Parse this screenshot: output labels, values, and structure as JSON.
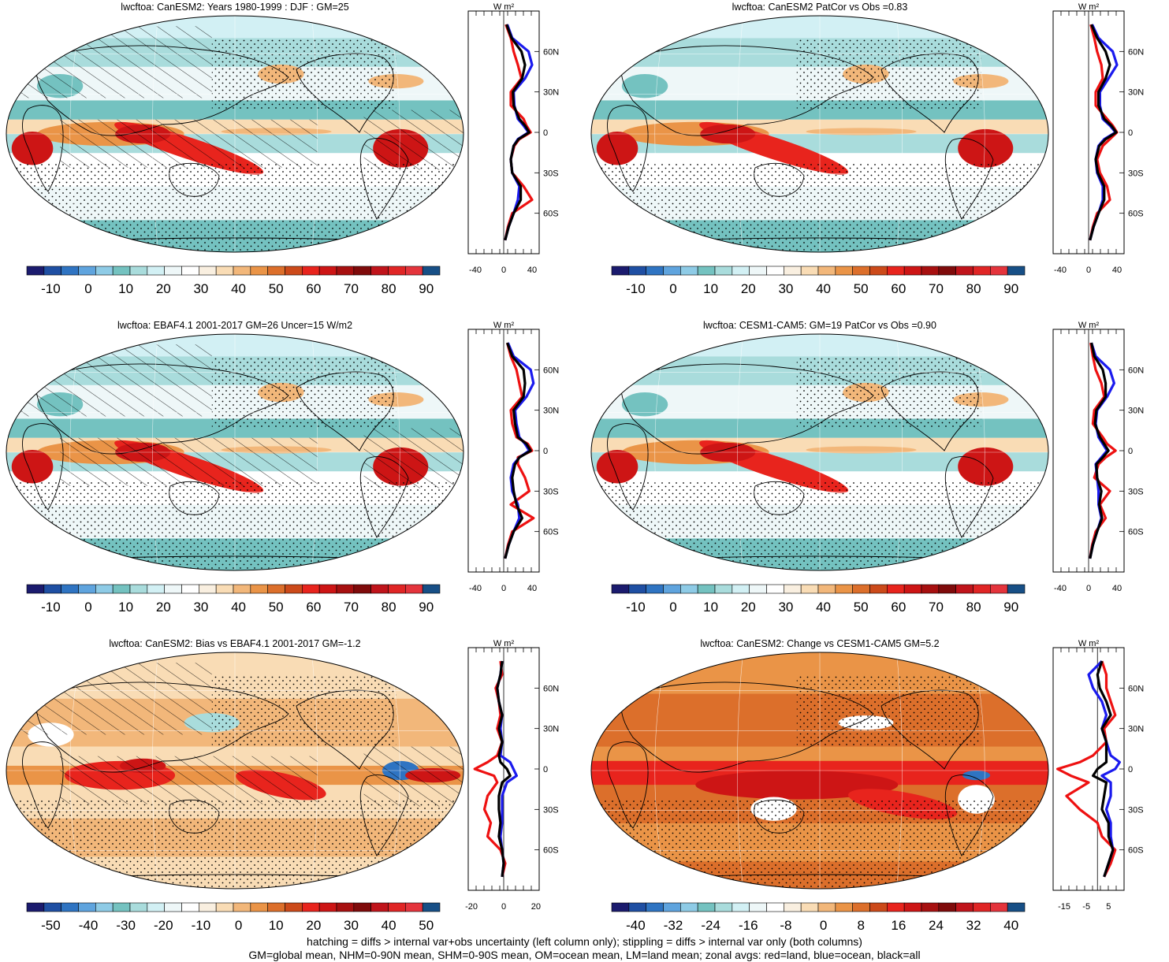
{
  "footer": {
    "line1": "hatching = diffs > internal var+obs uncertainty (left column only); stippling = diffs > internal var only (both columns)",
    "line2": "GM=global mean, NHM=0-90N mean, SHM=0-90S mean, OM=ocean mean, LM=land mean; zonal avgs: red=land, blue=ocean, black=all"
  },
  "zonal_units": "W m²",
  "lat_labels": [
    "60N",
    "30N",
    "0",
    "30S",
    "60S"
  ],
  "colors": {
    "land": "#ee1111",
    "ocean": "#1a1aee",
    "all": "#000000"
  },
  "palettes": {
    "mean": [
      "#1b1b6e",
      "#1f4fa3",
      "#2f74c2",
      "#5fa4de",
      "#8ecbe6",
      "#74c2c0",
      "#a9dcdc",
      "#d2f0f4",
      "#eef7f8",
      "#ffffff",
      "#f9efe0",
      "#f9dcb5",
      "#f2b77a",
      "#ea9447",
      "#dc6f2b",
      "#cc4a1a",
      "#e8241d",
      "#cd1515",
      "#a71010",
      "#7f0b0b",
      "#c0141b",
      "#e02525",
      "#e4343c",
      "#174f86"
    ],
    "diff": [
      "#1b1b6e",
      "#1f4fa3",
      "#2f74c2",
      "#5fa4de",
      "#8ecbe6",
      "#74c2c0",
      "#a9dcdc",
      "#d2f0f4",
      "#eef7f8",
      "#ffffff",
      "#f9efe0",
      "#f9dcb5",
      "#f2b77a",
      "#ea9447",
      "#dc6f2b",
      "#cc4a1a",
      "#e8241d",
      "#cd1515",
      "#a71010",
      "#7f0b0b",
      "#c0141b",
      "#e02525",
      "#e4343c",
      "#174f86"
    ]
  },
  "panels": [
    {
      "id": "p1",
      "title": "lwcftoa: CanESM2: Years 1980-1999 : DJF : GM=25",
      "cb_labels": [
        "-10",
        "0",
        "10",
        "20",
        "30",
        "40",
        "50",
        "60",
        "70",
        "80",
        "90"
      ],
      "cb_palette": "mean",
      "z_ticks": [
        "-40",
        "0",
        "40"
      ],
      "z_range": [
        -50,
        50
      ],
      "map_style": "mean",
      "hatch": true
    },
    {
      "id": "p2",
      "title": "lwcftoa: CanESM2 PatCor vs Obs =0.83",
      "cb_labels": [
        "-10",
        "0",
        "10",
        "20",
        "30",
        "40",
        "50",
        "60",
        "70",
        "80",
        "90"
      ],
      "cb_palette": "mean",
      "z_ticks": [
        "-40",
        "0",
        "40"
      ],
      "z_range": [
        -50,
        50
      ],
      "map_style": "mean",
      "hatch": false
    },
    {
      "id": "p3",
      "title": "lwcftoa: EBAF4.1 2001-2017 GM=26 Uncer=15 W/m2",
      "cb_labels": [
        "-10",
        "0",
        "10",
        "20",
        "30",
        "40",
        "50",
        "60",
        "70",
        "80",
        "90"
      ],
      "cb_palette": "mean",
      "z_ticks": [
        "-40",
        "0",
        "40"
      ],
      "z_range": [
        -50,
        50
      ],
      "map_style": "mean",
      "hatch": true
    },
    {
      "id": "p4",
      "title": "lwcftoa: CESM1-CAM5: GM=19 PatCor vs Obs =0.90",
      "cb_labels": [
        "-10",
        "0",
        "10",
        "20",
        "30",
        "40",
        "50",
        "60",
        "70",
        "80",
        "90"
      ],
      "cb_palette": "mean",
      "z_ticks": [
        "-40",
        "0",
        "40"
      ],
      "z_range": [
        -50,
        50
      ],
      "map_style": "mean",
      "hatch": false
    },
    {
      "id": "p5",
      "title": "lwcftoa: CanESM2: Bias vs EBAF4.1 2001-2017 GM=-1.2",
      "cb_labels": [
        "-50",
        "-40",
        "-30",
        "-20",
        "-10",
        "0",
        "10",
        "20",
        "30",
        "40",
        "50"
      ],
      "cb_palette": "diff",
      "z_ticks": [
        "-20",
        "0",
        "20"
      ],
      "z_range": [
        -22,
        22
      ],
      "map_style": "bias",
      "hatch": true
    },
    {
      "id": "p6",
      "title": "lwcftoa: CanESM2: Change vs CESM1-CAM5 GM=5.2",
      "cb_labels": [
        "-40",
        "-32",
        "-24",
        "-16",
        "-8",
        "0",
        "8",
        "16",
        "24",
        "32",
        "40"
      ],
      "cb_palette": "diff",
      "z_ticks": [
        "-15",
        "-5",
        "5"
      ],
      "z_range": [
        -20,
        12
      ],
      "map_style": "change",
      "hatch": false
    }
  ],
  "chart_data": [
    {
      "type": "area",
      "title": "lwcftoa: CanESM2: Years 1980-1999 : DJF : GM=25",
      "y_ticks": [
        "60N",
        "30N",
        "0",
        "30S",
        "60S"
      ],
      "x_ticks": [
        -40,
        0,
        40
      ],
      "lat": [
        80,
        70,
        60,
        50,
        40,
        30,
        20,
        10,
        5,
        0,
        -5,
        -10,
        -20,
        -30,
        -40,
        -50,
        -60,
        -70,
        -80
      ],
      "series": [
        {
          "name": "land",
          "values": [
            3,
            10,
            14,
            20,
            25,
            10,
            10,
            28,
            32,
            38,
            22,
            15,
            10,
            12,
            28,
            40,
            12,
            6,
            2
          ]
        },
        {
          "name": "ocean",
          "values": [
            5,
            12,
            35,
            40,
            30,
            14,
            15,
            20,
            28,
            35,
            20,
            14,
            10,
            12,
            22,
            20,
            14,
            7,
            2
          ]
        },
        {
          "name": "all",
          "values": [
            4,
            11,
            25,
            30,
            26,
            13,
            14,
            22,
            30,
            36,
            21,
            14,
            10,
            12,
            24,
            24,
            14,
            7,
            2
          ]
        }
      ]
    },
    {
      "type": "area",
      "title": "lwcftoa: CanESM2 PatCor vs Obs =0.83",
      "y_ticks": [
        "60N",
        "30N",
        "0",
        "30S",
        "60S"
      ],
      "x_ticks": [
        -40,
        0,
        40
      ],
      "lat": [
        80,
        70,
        60,
        50,
        40,
        30,
        20,
        10,
        5,
        0,
        -5,
        -10,
        -20,
        -30,
        -40,
        -50,
        -60,
        -70,
        -80
      ],
      "series": [
        {
          "name": "land",
          "values": [
            3,
            8,
            12,
            18,
            20,
            10,
            10,
            26,
            34,
            40,
            30,
            20,
            12,
            16,
            26,
            30,
            12,
            6,
            2
          ]
        },
        {
          "name": "ocean",
          "values": [
            5,
            14,
            34,
            40,
            28,
            16,
            16,
            20,
            30,
            38,
            22,
            14,
            10,
            12,
            20,
            20,
            14,
            7,
            2
          ]
        },
        {
          "name": "all",
          "values": [
            4,
            12,
            24,
            30,
            24,
            14,
            14,
            22,
            32,
            39,
            24,
            15,
            10,
            13,
            22,
            22,
            14,
            7,
            2
          ]
        }
      ]
    },
    {
      "type": "area",
      "title": "lwcftoa: EBAF4.1 2001-2017 GM=26 Uncer=15 W/m2",
      "y_ticks": [
        "60N",
        "30N",
        "0",
        "30S",
        "60S"
      ],
      "x_ticks": [
        -40,
        0,
        40
      ],
      "lat": [
        80,
        70,
        60,
        50,
        40,
        30,
        20,
        10,
        5,
        0,
        -5,
        -10,
        -20,
        -30,
        -40,
        -50,
        -60,
        -70,
        -80
      ],
      "series": [
        {
          "name": "land",
          "values": [
            5,
            10,
            18,
            22,
            26,
            10,
            12,
            18,
            34,
            40,
            20,
            20,
            30,
            36,
            10,
            42,
            12,
            6,
            2
          ]
        },
        {
          "name": "ocean",
          "values": [
            6,
            14,
            38,
            42,
            32,
            16,
            18,
            22,
            30,
            36,
            22,
            14,
            10,
            12,
            20,
            22,
            14,
            7,
            2
          ]
        },
        {
          "name": "all",
          "values": [
            5,
            12,
            28,
            30,
            28,
            14,
            16,
            20,
            32,
            38,
            22,
            16,
            12,
            14,
            18,
            26,
            14,
            7,
            2
          ]
        }
      ]
    },
    {
      "type": "area",
      "title": "lwcftoa: CESM1-CAM5: GM=19 PatCor vs Obs =0.90",
      "y_ticks": [
        "60N",
        "30N",
        "0",
        "30S",
        "60S"
      ],
      "x_ticks": [
        -40,
        0,
        40
      ],
      "lat": [
        80,
        70,
        60,
        50,
        40,
        30,
        20,
        10,
        5,
        0,
        -5,
        -10,
        -20,
        -30,
        -40,
        -50,
        -60,
        -70,
        -80
      ],
      "series": [
        {
          "name": "land",
          "values": [
            3,
            6,
            10,
            18,
            22,
            8,
            6,
            20,
            26,
            38,
            24,
            14,
            8,
            30,
            16,
            24,
            10,
            5,
            2
          ]
        },
        {
          "name": "ocean",
          "values": [
            4,
            10,
            30,
            36,
            26,
            12,
            10,
            14,
            20,
            26,
            18,
            10,
            12,
            14,
            14,
            18,
            12,
            6,
            2
          ]
        },
        {
          "name": "all",
          "values": [
            4,
            8,
            20,
            24,
            24,
            11,
            9,
            16,
            22,
            28,
            20,
            11,
            12,
            18,
            15,
            19,
            12,
            6,
            2
          ]
        }
      ]
    },
    {
      "type": "area",
      "title": "lwcftoa: CanESM2: Bias vs EBAF4.1 2001-2017 GM=-1.2",
      "y_ticks": [
        "60N",
        "30N",
        "0",
        "30S",
        "60S"
      ],
      "x_ticks": [
        -20,
        0,
        20
      ],
      "lat": [
        80,
        70,
        60,
        50,
        40,
        30,
        20,
        10,
        5,
        0,
        -5,
        -10,
        -20,
        -30,
        -40,
        -50,
        -60,
        -70,
        -80
      ],
      "series": [
        {
          "name": "land",
          "values": [
            -2,
            -1,
            -5,
            -3,
            -2,
            -4,
            -1,
            -4,
            -10,
            -18,
            -6,
            -4,
            -10,
            -12,
            -8,
            -10,
            -2,
            1,
            -1
          ]
        },
        {
          "name": "ocean",
          "values": [
            -1,
            -2,
            -4,
            -3,
            -1,
            -2,
            -1,
            -2,
            4,
            6,
            8,
            2,
            -1,
            -1,
            -1,
            -2,
            -1,
            0,
            -1
          ]
        },
        {
          "name": "all",
          "values": [
            -1,
            -2,
            -4,
            -3,
            -1,
            -3,
            -1,
            -3,
            -2,
            2,
            4,
            -1,
            -3,
            -3,
            -2,
            -3,
            -1,
            0,
            -1
          ]
        }
      ]
    },
    {
      "type": "area",
      "title": "lwcftoa: CanESM2: Change vs CESM1-CAM5 GM=5.2",
      "y_ticks": [
        "60N",
        "30N",
        "0",
        "30S",
        "60S"
      ],
      "x_ticks": [
        -15,
        -5,
        5
      ],
      "lat": [
        80,
        70,
        60,
        50,
        40,
        30,
        20,
        10,
        5,
        0,
        -5,
        -10,
        -20,
        -30,
        -40,
        -50,
        -60,
        -70,
        -80
      ],
      "series": [
        {
          "name": "land",
          "values": [
            2,
            4,
            4,
            6,
            8,
            3,
            4,
            -2,
            -8,
            -18,
            -12,
            -4,
            -14,
            -8,
            0,
            2,
            8,
            6,
            3
          ]
        },
        {
          "name": "ocean",
          "values": [
            2,
            -4,
            -2,
            2,
            4,
            2,
            4,
            6,
            10,
            8,
            2,
            6,
            6,
            4,
            6,
            6,
            7,
            5,
            3
          ]
        },
        {
          "name": "all",
          "values": [
            2,
            0,
            1,
            4,
            6,
            2,
            4,
            4,
            4,
            0,
            -2,
            4,
            3,
            2,
            5,
            5,
            7,
            5,
            3
          ]
        }
      ]
    }
  ]
}
